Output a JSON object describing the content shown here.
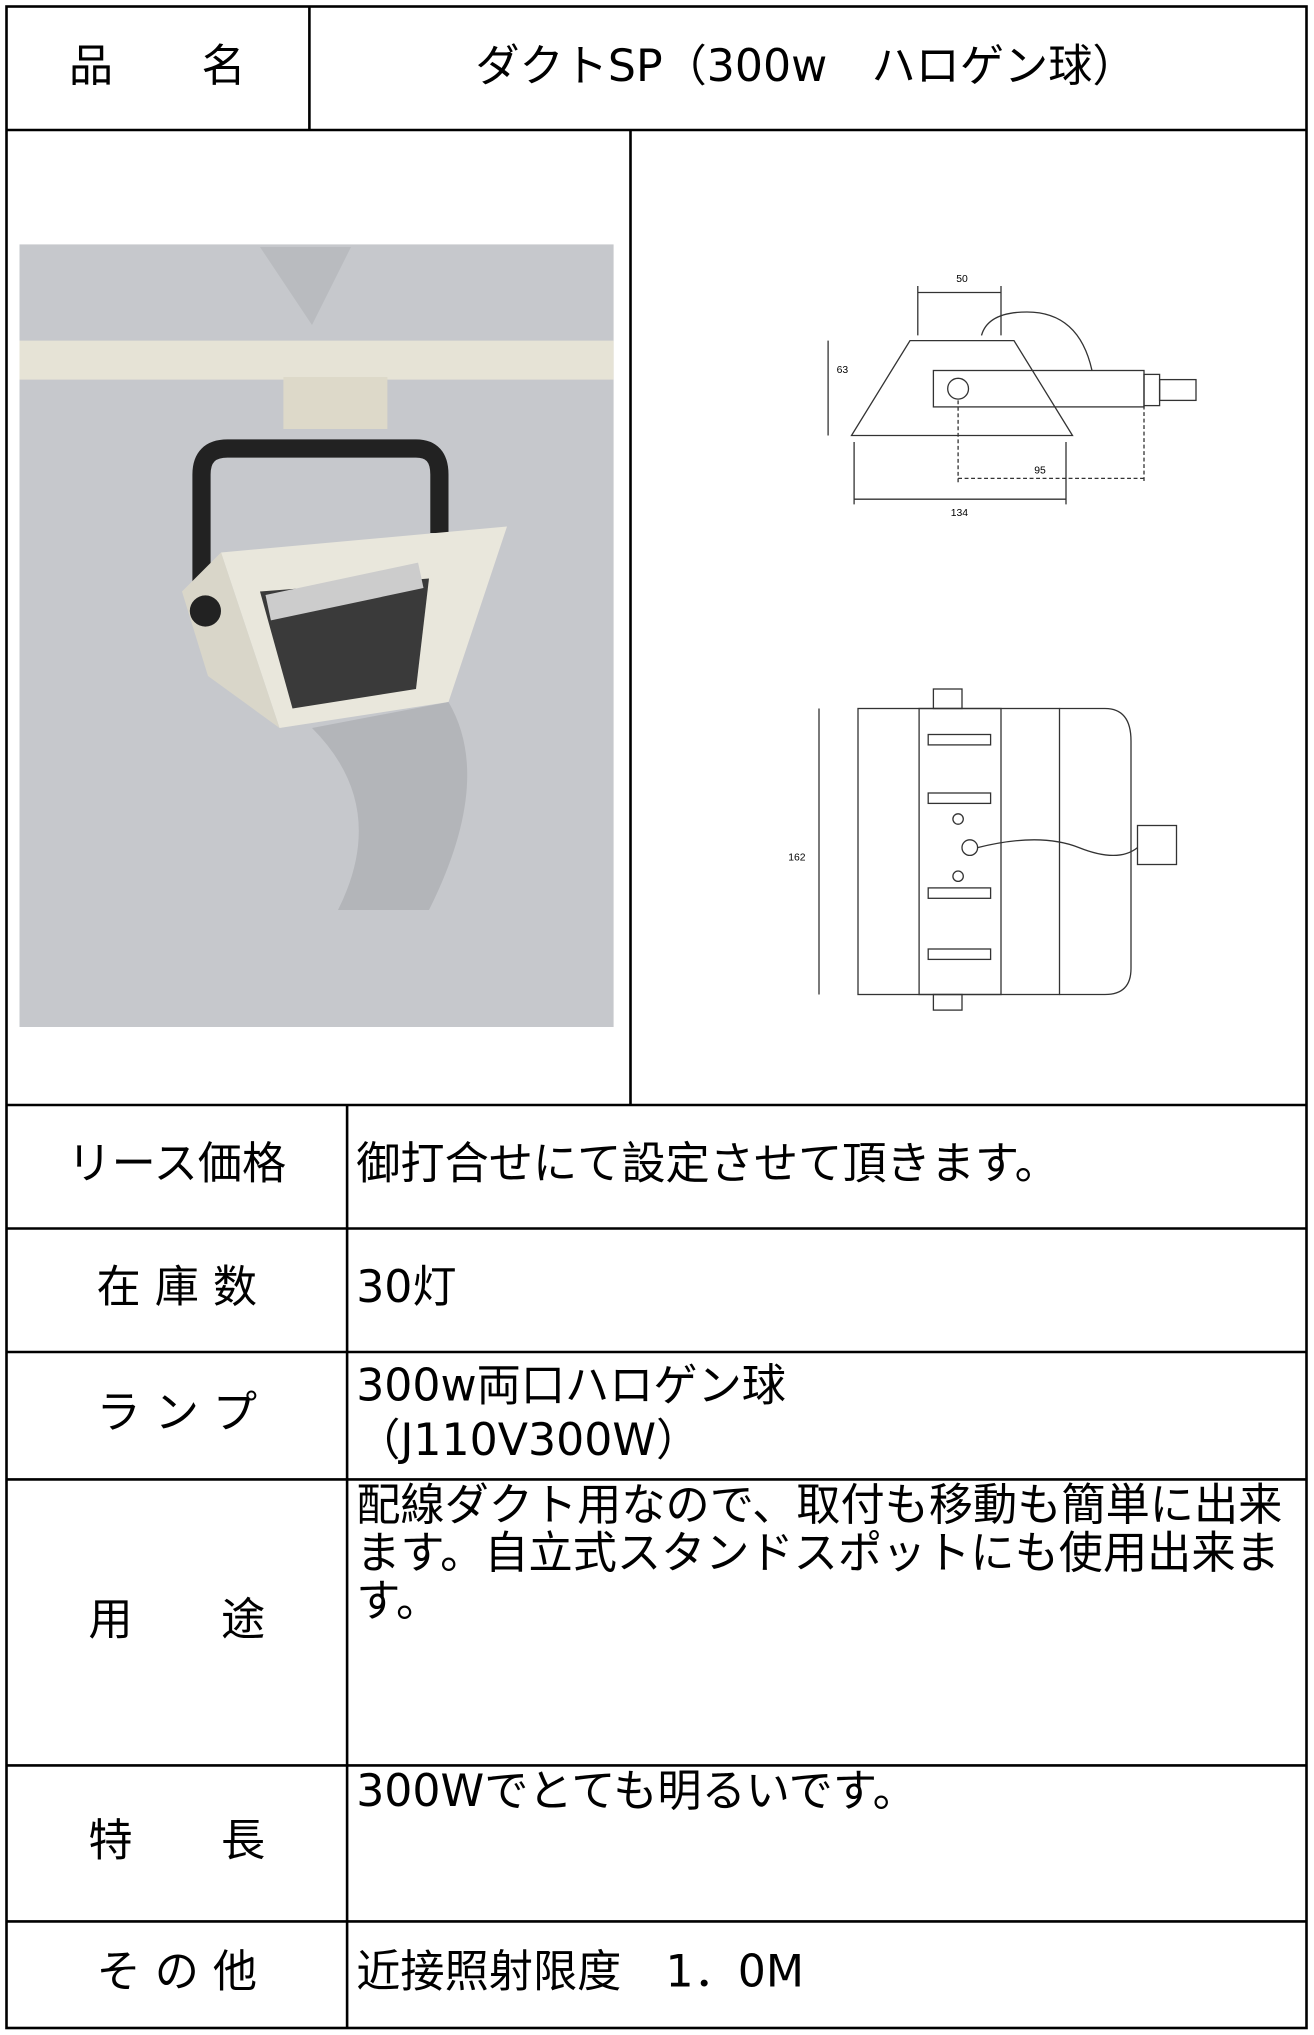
{
  "header": {
    "label": "品　　名",
    "title": "ダクトSP（300w　ハロゲン球）"
  },
  "drawing": {
    "dimensions": [
      "50",
      "63",
      "95",
      "134",
      "162"
    ]
  },
  "rows": [
    {
      "label": "リース価格",
      "lines": [
        "御打合せにて設定させて頂きます。"
      ]
    },
    {
      "label": "在 庫 数",
      "lines": [
        "30灯"
      ]
    },
    {
      "label": "ラ ン プ",
      "lines": [
        "300w両口ハロゲン球",
        "（J110V300W）"
      ]
    },
    {
      "label": "用　　途",
      "lines": [
        "配線ダクト用なので、取付も移動も簡単に出来",
        "ます。自立式スタンドスポットにも使用出来ま",
        "す。"
      ]
    },
    {
      "label": "特　　長",
      "lines": [
        "300Wでとても明るいです。"
      ]
    },
    {
      "label": "そ の 他",
      "lines": [
        "近接照射限度　1．0M"
      ]
    }
  ]
}
